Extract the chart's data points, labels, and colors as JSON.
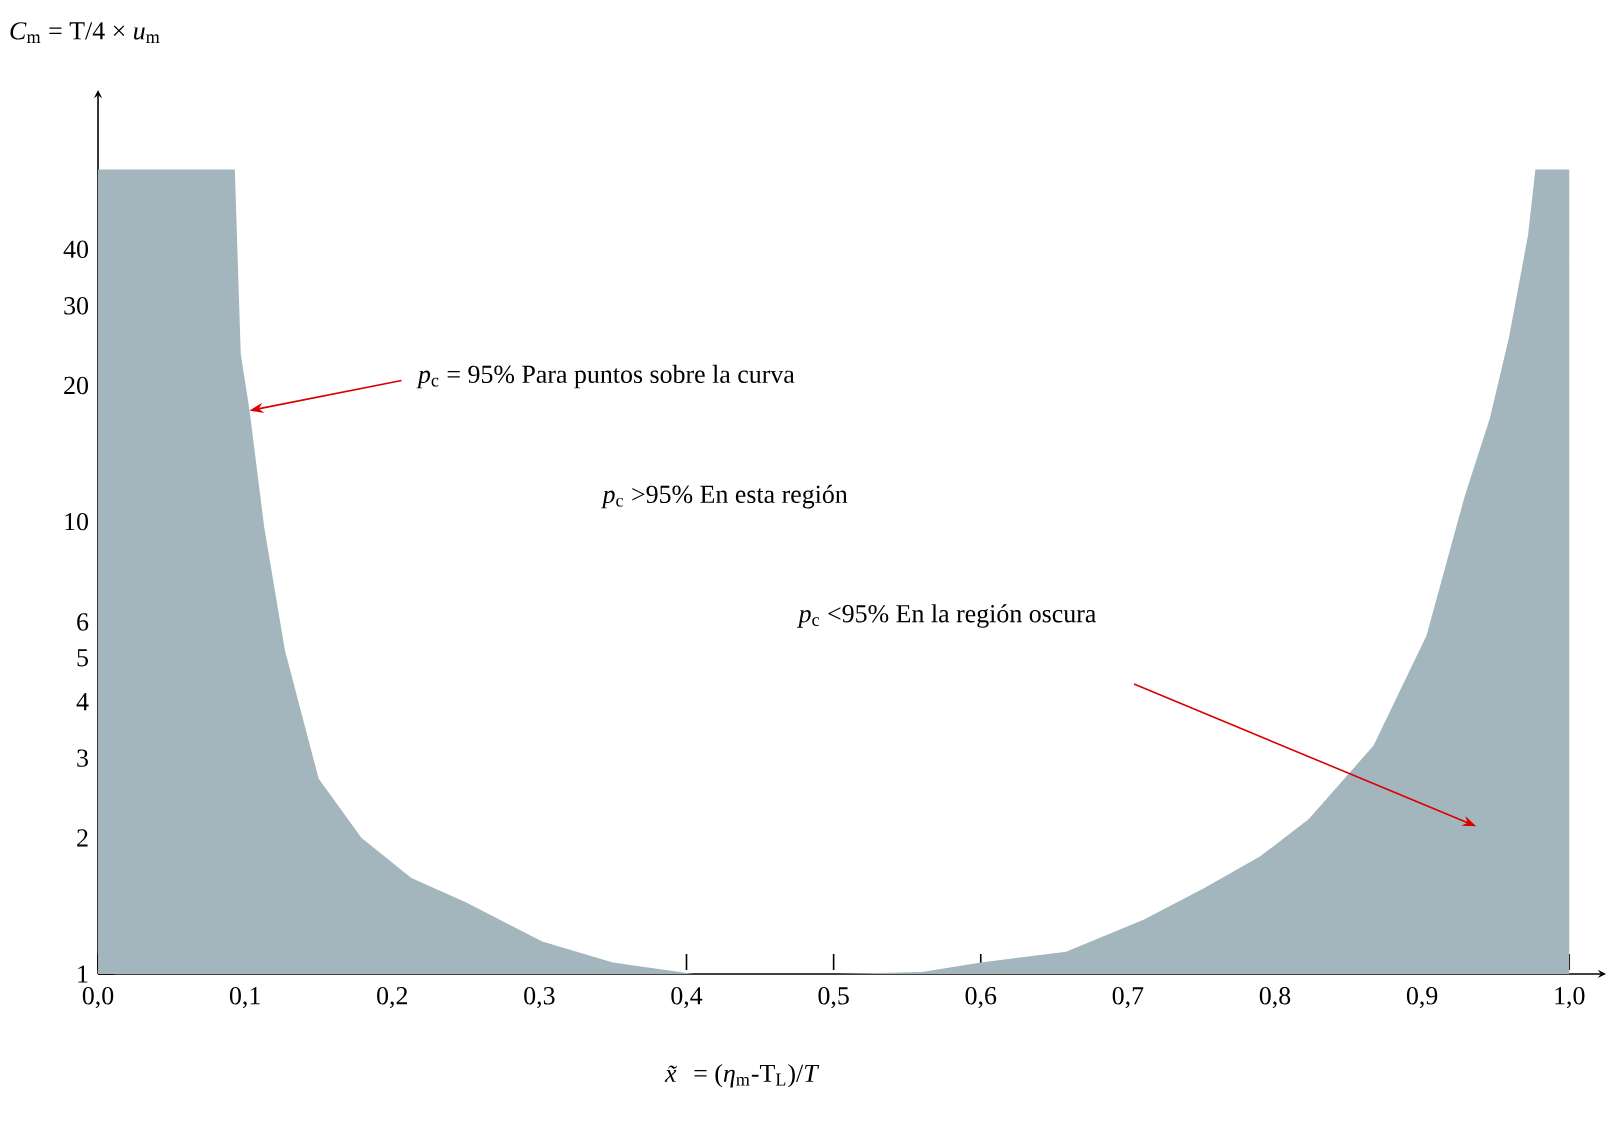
{
  "chart_data": {
    "type": "area",
    "ylabel": "*C*$_{m}$ = T/4 × *u*$_{m}$",
    "xlabel": "*x̃* = (*η*$_{m}$-T$_{L}$)/*T*",
    "log": "y",
    "xlim": [
      0,
      1.025
    ],
    "ylim": [
      1,
      90
    ],
    "xticks": [
      {
        "value": 0,
        "label": "0,0"
      },
      {
        "value": 0.1,
        "label": "0,1"
      },
      {
        "value": 0.2,
        "label": "0,2"
      },
      {
        "value": 0.3,
        "label": "0,3"
      },
      {
        "value": 0.4,
        "label": "0,4"
      },
      {
        "value": 0.5,
        "label": "0,5"
      },
      {
        "value": 0.6,
        "label": "0,6"
      },
      {
        "value": 0.7,
        "label": "0,7"
      },
      {
        "value": 0.8,
        "label": "0,8"
      },
      {
        "value": 0.9,
        "label": "0,9"
      },
      {
        "value": 1.0,
        "label": "1,0"
      }
    ],
    "yticks": [
      1,
      2,
      3,
      4,
      5,
      6,
      10,
      20,
      30,
      40
    ],
    "series": [
      {
        "color": "#a3b6be",
        "x": [
          0,
          0.093,
          0.097,
          0.103,
          0.113,
          0.127,
          0.15,
          0.179,
          0.213,
          0.25,
          0.302,
          0.35,
          0.405,
          0.5,
          0.56,
          0.6,
          0.658,
          0.711,
          0.752,
          0.79,
          0.823,
          0.867,
          0.903,
          0.929,
          0.946,
          0.959,
          0.972,
          0.977,
          1.0
        ],
        "values": [
          60,
          60,
          23.5,
          17.6,
          9.7,
          5.2,
          2.7,
          2.0,
          1.63,
          1.44,
          1.18,
          1.06,
          1,
          1,
          1.01,
          1.06,
          1.12,
          1.32,
          1.55,
          1.82,
          2.2,
          3.2,
          5.6,
          11.4,
          16.9,
          25.5,
          43,
          60,
          60
        ]
      }
    ],
    "annotations": [
      {
        "text": "*p*$_{c}$ = 95% Para puntos sobre la curva",
        "x": 0.103,
        "y": 17.6
      },
      "*p*$_{c}$ >95% En esta región",
      "*p*$_{c}$ <95% En la región oscura"
    ],
    "grid": false
  }
}
